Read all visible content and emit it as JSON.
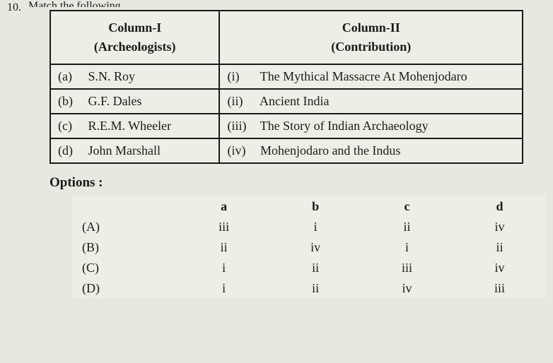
{
  "question": {
    "number": "10.",
    "partial_text": "Match the following"
  },
  "table": {
    "header_col1_line1": "Column-I",
    "header_col1_line2": "(Archeologists)",
    "header_col2_line1": "Column-II",
    "header_col2_line2": "(Contribution)",
    "rows": [
      {
        "left_label": "(a)",
        "left_val": "S.N. Roy",
        "right_label": "(i)",
        "right_val": "The Mythical Massacre At Mohenjodaro"
      },
      {
        "left_label": "(b)",
        "left_val": "G.F. Dales",
        "right_label": "(ii)",
        "right_val": "Ancient India"
      },
      {
        "left_label": "(c)",
        "left_val": "R.E.M. Wheeler",
        "right_label": "(iii)",
        "right_val": "The Story of Indian Archaeology"
      },
      {
        "left_label": "(d)",
        "left_val": "John Marshall",
        "right_label": "(iv)",
        "right_val": "Mohenjodaro and the Indus"
      }
    ]
  },
  "options": {
    "title": "Options :",
    "header": {
      "a": "a",
      "b": "b",
      "c": "c",
      "d": "d"
    },
    "rows": [
      {
        "label": "(A)",
        "a": "iii",
        "b": "i",
        "c": "ii",
        "d": "iv"
      },
      {
        "label": "(B)",
        "a": "ii",
        "b": "iv",
        "c": "i",
        "d": "ii"
      },
      {
        "label": "(C)",
        "a": "i",
        "b": "ii",
        "c": "iii",
        "d": "iv"
      },
      {
        "label": "(D)",
        "a": "i",
        "b": "ii",
        "c": "iv",
        "d": "iii"
      }
    ]
  },
  "styling": {
    "background_color": "#e8e8e0",
    "text_color": "#1a1a1a",
    "border_color": "#1a1a1a",
    "font_family": "Times New Roman",
    "table_font_size": 18,
    "header_font_weight": "bold"
  }
}
